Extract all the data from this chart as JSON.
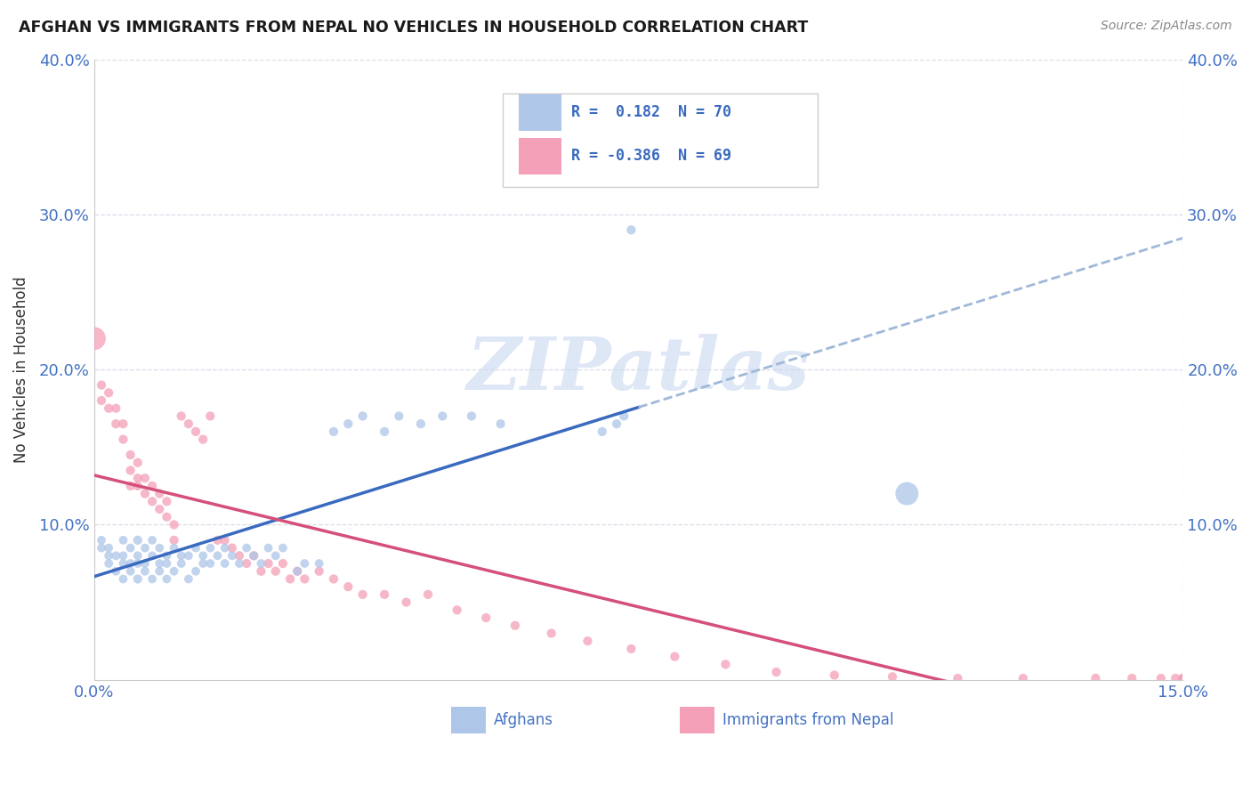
{
  "title": "AFGHAN VS IMMIGRANTS FROM NEPAL NO VEHICLES IN HOUSEHOLD CORRELATION CHART",
  "source": "Source: ZipAtlas.com",
  "ylabel": "No Vehicles in Household",
  "xlabel_afghans": "Afghans",
  "xlabel_nepal": "Immigrants from Nepal",
  "xlim": [
    0.0,
    0.15
  ],
  "ylim": [
    0.0,
    0.4
  ],
  "r_afghans": 0.182,
  "n_afghans": 70,
  "r_nepal": -0.386,
  "n_nepal": 69,
  "color_afghans": "#aec6e8",
  "color_nepal": "#f4a0b8",
  "line_afghans": "#3a6abf",
  "line_nepal": "#d4507a",
  "line_afghans_dash": "#a0b8d8",
  "watermark_color": "#c8d8f0",
  "afghans_x": [
    0.001,
    0.001,
    0.002,
    0.002,
    0.002,
    0.003,
    0.003,
    0.004,
    0.004,
    0.004,
    0.004,
    0.005,
    0.005,
    0.005,
    0.006,
    0.006,
    0.006,
    0.006,
    0.007,
    0.007,
    0.007,
    0.008,
    0.008,
    0.008,
    0.009,
    0.009,
    0.009,
    0.01,
    0.01,
    0.01,
    0.011,
    0.011,
    0.012,
    0.012,
    0.013,
    0.013,
    0.014,
    0.014,
    0.015,
    0.015,
    0.016,
    0.016,
    0.017,
    0.018,
    0.018,
    0.019,
    0.02,
    0.021,
    0.022,
    0.023,
    0.024,
    0.025,
    0.026,
    0.028,
    0.029,
    0.031,
    0.033,
    0.035,
    0.037,
    0.04,
    0.042,
    0.045,
    0.048,
    0.052,
    0.056,
    0.07,
    0.072,
    0.073,
    0.074,
    0.112
  ],
  "afghans_y": [
    0.085,
    0.09,
    0.075,
    0.08,
    0.085,
    0.07,
    0.08,
    0.065,
    0.075,
    0.08,
    0.09,
    0.07,
    0.075,
    0.085,
    0.065,
    0.075,
    0.08,
    0.09,
    0.07,
    0.075,
    0.085,
    0.065,
    0.08,
    0.09,
    0.07,
    0.075,
    0.085,
    0.065,
    0.075,
    0.08,
    0.07,
    0.085,
    0.075,
    0.08,
    0.065,
    0.08,
    0.07,
    0.085,
    0.075,
    0.08,
    0.075,
    0.085,
    0.08,
    0.075,
    0.085,
    0.08,
    0.075,
    0.085,
    0.08,
    0.075,
    0.085,
    0.08,
    0.085,
    0.07,
    0.075,
    0.075,
    0.16,
    0.165,
    0.17,
    0.16,
    0.17,
    0.165,
    0.17,
    0.17,
    0.165,
    0.16,
    0.165,
    0.17,
    0.29,
    0.12
  ],
  "afghans_size": [
    50,
    50,
    50,
    50,
    50,
    50,
    50,
    50,
    50,
    50,
    50,
    50,
    50,
    50,
    55,
    50,
    50,
    55,
    50,
    50,
    50,
    50,
    50,
    50,
    50,
    50,
    50,
    50,
    50,
    50,
    50,
    50,
    50,
    50,
    50,
    50,
    50,
    50,
    50,
    50,
    50,
    50,
    50,
    50,
    50,
    50,
    50,
    50,
    50,
    50,
    50,
    50,
    50,
    50,
    50,
    50,
    55,
    55,
    55,
    55,
    55,
    55,
    55,
    55,
    55,
    55,
    55,
    55,
    55,
    350
  ],
  "nepal_x": [
    0.0,
    0.001,
    0.001,
    0.002,
    0.002,
    0.003,
    0.003,
    0.004,
    0.004,
    0.005,
    0.005,
    0.005,
    0.006,
    0.006,
    0.006,
    0.007,
    0.007,
    0.008,
    0.008,
    0.009,
    0.009,
    0.01,
    0.01,
    0.011,
    0.011,
    0.012,
    0.013,
    0.014,
    0.015,
    0.016,
    0.017,
    0.018,
    0.019,
    0.02,
    0.021,
    0.022,
    0.023,
    0.024,
    0.025,
    0.026,
    0.027,
    0.028,
    0.029,
    0.031,
    0.033,
    0.035,
    0.037,
    0.04,
    0.043,
    0.046,
    0.05,
    0.054,
    0.058,
    0.063,
    0.068,
    0.074,
    0.08,
    0.087,
    0.094,
    0.102,
    0.11,
    0.119,
    0.128,
    0.138,
    0.143,
    0.147,
    0.149,
    0.15,
    0.15
  ],
  "nepal_y": [
    0.22,
    0.19,
    0.18,
    0.175,
    0.185,
    0.165,
    0.175,
    0.155,
    0.165,
    0.135,
    0.145,
    0.125,
    0.13,
    0.14,
    0.125,
    0.12,
    0.13,
    0.115,
    0.125,
    0.11,
    0.12,
    0.105,
    0.115,
    0.09,
    0.1,
    0.17,
    0.165,
    0.16,
    0.155,
    0.17,
    0.09,
    0.09,
    0.085,
    0.08,
    0.075,
    0.08,
    0.07,
    0.075,
    0.07,
    0.075,
    0.065,
    0.07,
    0.065,
    0.07,
    0.065,
    0.06,
    0.055,
    0.055,
    0.05,
    0.055,
    0.045,
    0.04,
    0.035,
    0.03,
    0.025,
    0.02,
    0.015,
    0.01,
    0.005,
    0.003,
    0.002,
    0.001,
    0.001,
    0.001,
    0.001,
    0.001,
    0.001,
    0.001,
    0.001
  ],
  "nepal_size": [
    350,
    55,
    55,
    55,
    55,
    55,
    55,
    55,
    55,
    55,
    55,
    55,
    55,
    55,
    55,
    55,
    55,
    55,
    55,
    55,
    55,
    55,
    55,
    55,
    55,
    55,
    55,
    55,
    55,
    55,
    55,
    55,
    55,
    55,
    55,
    55,
    55,
    55,
    55,
    55,
    55,
    55,
    55,
    55,
    55,
    55,
    55,
    55,
    55,
    55,
    55,
    55,
    55,
    55,
    55,
    55,
    55,
    55,
    55,
    55,
    55,
    55,
    55,
    55,
    55,
    55,
    55,
    55,
    55
  ]
}
